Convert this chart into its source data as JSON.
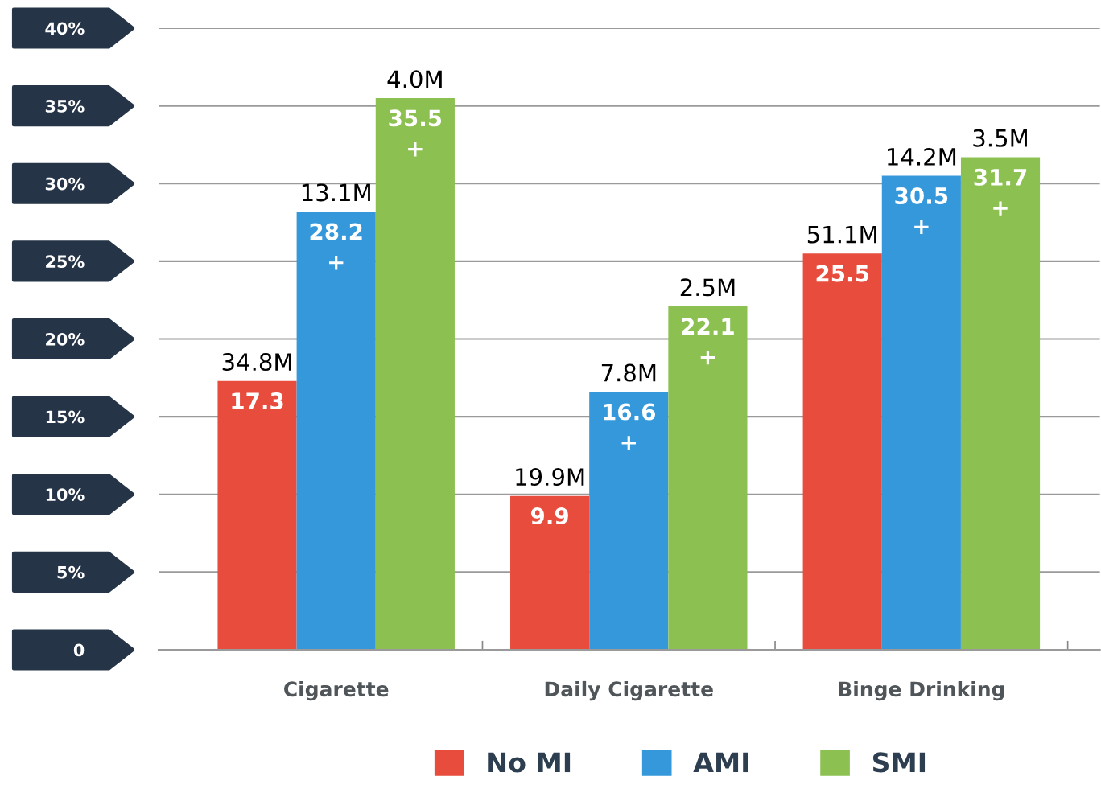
{
  "chart_data": {
    "type": "bar",
    "categories": [
      "Cigarette",
      "Daily Cigarette",
      "Binge Drinking"
    ],
    "series": [
      {
        "name": "No MI",
        "color": "#e74c3c",
        "values": [
          17.3,
          9.9,
          25.5
        ],
        "value_labels": [
          "17.3",
          "9.9",
          "25.5"
        ]
      },
      {
        "name": "AMI",
        "color": "#3498db",
        "values": [
          28.2,
          16.6,
          30.5
        ],
        "value_labels": [
          "28.2\n+",
          "16.6\n+",
          "30.5\n+"
        ]
      },
      {
        "name": "SMI",
        "color": "#8cc152",
        "values": [
          35.5,
          22.1,
          31.7
        ],
        "value_labels": [
          "35.5\n+",
          "22.1\n+",
          "31.7\n+"
        ]
      }
    ],
    "ylim": [
      0,
      40
    ],
    "yticks": [
      {
        "value": 0,
        "label": "0"
      },
      {
        "value": 5,
        "label": "5%"
      },
      {
        "value": 10,
        "label": "10%"
      },
      {
        "value": 15,
        "label": "15%"
      },
      {
        "value": 20,
        "label": "20%"
      },
      {
        "value": 25,
        "label": "25%"
      },
      {
        "value": 30,
        "label": "30%"
      },
      {
        "value": 35,
        "label": "35%"
      },
      {
        "value": 40,
        "label": "40%"
      }
    ],
    "grid": "y",
    "legend": "bottom",
    "annotations": [
      "34.8M",
      "19.9M",
      "51.1M",
      "13.1M",
      "7.8M",
      "14.2M",
      "4.0M",
      "2.5M",
      "3.5M"
    ]
  }
}
